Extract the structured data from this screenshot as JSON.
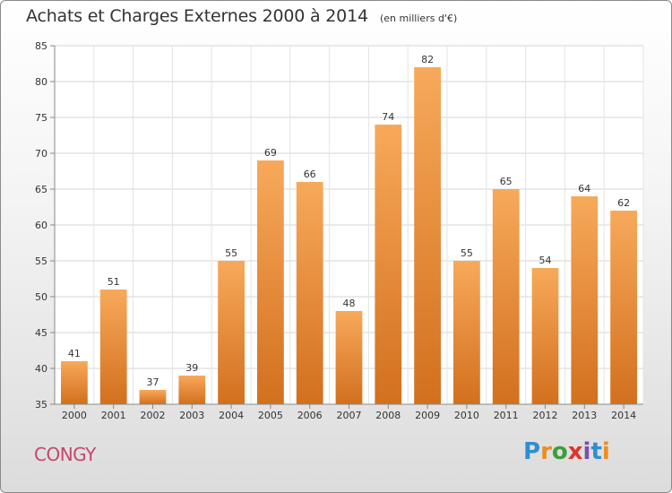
{
  "title": "Achats et Charges Externes 2000 à 2014",
  "subtitle": "(en milliers d'€)",
  "commune": "CONGY",
  "logo": {
    "text": "Proxiti",
    "colors": [
      "#2e8fd0",
      "#f08c1e",
      "#3c9e3c",
      "#e0332a",
      "#7c4fa8",
      "#2e8fd0",
      "#f08c1e"
    ]
  },
  "chart_data": {
    "type": "bar",
    "categories": [
      "2000",
      "2001",
      "2002",
      "2003",
      "2004",
      "2005",
      "2006",
      "2007",
      "2008",
      "2009",
      "2010",
      "2011",
      "2012",
      "2013",
      "2014"
    ],
    "values": [
      41,
      51,
      37,
      39,
      55,
      69,
      66,
      48,
      74,
      82,
      55,
      65,
      54,
      64,
      62
    ],
    "ylim": [
      35,
      85
    ],
    "yticks": [
      35,
      40,
      45,
      50,
      55,
      60,
      65,
      70,
      75,
      80,
      85
    ],
    "grid": true,
    "bar_color_top": "#f7a95a",
    "bar_color_bottom": "#d2701e"
  }
}
